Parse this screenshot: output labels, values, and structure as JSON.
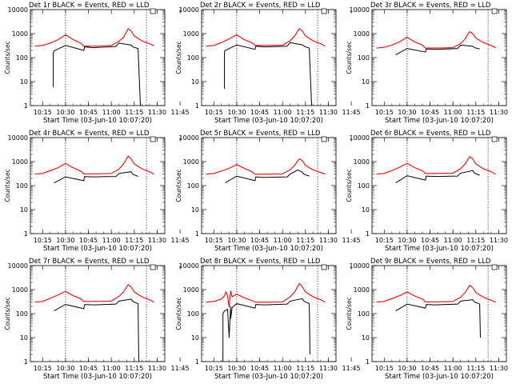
{
  "chart_data": [
    {
      "type": "line",
      "title": "Det 1r BLACK = Events, RED = LLD",
      "xlabel": "Start Time (03-Jun-10 10:07:20)",
      "ylabel": "Counts/sec",
      "scale_y": "log",
      "ylim": [
        1,
        10000
      ],
      "x_ticks": [
        "10:15",
        "10:30",
        "10:45",
        "11:00",
        "11:15",
        "11:30",
        "11:45"
      ],
      "y_ticks": [
        "1",
        "10",
        "100",
        "1000",
        "10000"
      ],
      "vlines": [
        "10:30",
        "11:23"
      ],
      "series": [
        {
          "color": "#000000",
          "x": [
            -8,
            -8,
            -7.5,
            0,
            12,
            12.5,
            18,
            33,
            35,
            43,
            44,
            47.5,
            49
          ],
          "y": [
            6,
            160,
            190,
            320,
            200,
            280,
            260,
            290,
            400,
            330,
            280,
            240,
            0
          ]
        },
        {
          "color": "#ff0000",
          "x": [
            -20,
            -15,
            -10,
            -5,
            0,
            5,
            10,
            12,
            20,
            30,
            35,
            38,
            40,
            41,
            43,
            45,
            50,
            55,
            58
          ],
          "y": [
            300,
            320,
            400,
            550,
            900,
            560,
            400,
            300,
            300,
            320,
            480,
            700,
            1200,
            1600,
            1300,
            800,
            500,
            380,
            310
          ]
        }
      ]
    },
    {
      "type": "line",
      "title": "Det 2r BLACK = Events, RED = LLD",
      "xlabel": "Start Time (03-Jun-10 10:07:20)",
      "ylabel": "Counts/sec",
      "scale_y": "log",
      "ylim": [
        1,
        10000
      ],
      "x_ticks": [
        "10:15",
        "10:30",
        "10:45",
        "11:00",
        "11:15",
        "11:30",
        "11:45"
      ],
      "y_ticks": [
        "1",
        "10",
        "100",
        "1000",
        "10000"
      ],
      "vlines": [
        "10:30",
        "11:23"
      ],
      "series": [
        {
          "color": "#000000",
          "x": [
            -8,
            -8,
            -7.5,
            0,
            12,
            12.5,
            18,
            33,
            35,
            43,
            44,
            47.5,
            49
          ],
          "y": [
            5,
            180,
            200,
            340,
            220,
            300,
            280,
            300,
            420,
            340,
            300,
            250,
            0
          ]
        },
        {
          "color": "#ff0000",
          "x": [
            -20,
            -15,
            -10,
            -5,
            0,
            5,
            10,
            12,
            20,
            30,
            35,
            38,
            40,
            41,
            43,
            45,
            50,
            55,
            58
          ],
          "y": [
            300,
            320,
            420,
            600,
            900,
            560,
            420,
            320,
            320,
            330,
            500,
            800,
            1300,
            1600,
            1300,
            800,
            500,
            380,
            300
          ]
        }
      ]
    },
    {
      "type": "line",
      "title": "Det 3r BLACK = Events, RED = LLD",
      "xlabel": "Start Time (03-Jun-10 10:07:20)",
      "ylabel": "Counts/sec",
      "scale_y": "log",
      "ylim": [
        1,
        10000
      ],
      "x_ticks": [
        "10:15",
        "10:30",
        "10:45",
        "11:00",
        "11:15",
        "11:30",
        "11:45"
      ],
      "y_ticks": [
        "1",
        "10",
        "100",
        "1000",
        "10000"
      ],
      "vlines": [
        "10:30",
        "11:23"
      ],
      "series": [
        {
          "color": "#000000",
          "x": [
            -7.5,
            0,
            12,
            12.5,
            18,
            33,
            35,
            43,
            44,
            47.5
          ],
          "y": [
            130,
            240,
            170,
            230,
            220,
            240,
            330,
            300,
            260,
            230
          ]
        },
        {
          "color": "#ff0000",
          "x": [
            -20,
            -15,
            -10,
            -5,
            0,
            5,
            10,
            12,
            20,
            30,
            35,
            38,
            40,
            41,
            43,
            45,
            50,
            55,
            58
          ],
          "y": [
            250,
            270,
            330,
            450,
            700,
            450,
            330,
            250,
            250,
            260,
            380,
            600,
            1000,
            1200,
            1000,
            650,
            420,
            320,
            260
          ]
        }
      ]
    },
    {
      "type": "line",
      "title": "Det 4r BLACK = Events, RED = LLD",
      "xlabel": "Start Time (03-Jun-10 10:07:20)",
      "ylabel": "Counts/sec",
      "scale_y": "log",
      "ylim": [
        1,
        10000
      ],
      "x_ticks": [
        "10:15",
        "10:30",
        "10:45",
        "11:00",
        "11:15",
        "11:30",
        "11:45"
      ],
      "y_ticks": [
        "1",
        "10",
        "100",
        "1000",
        "10000"
      ],
      "vlines": [
        "10:30",
        "11:23"
      ],
      "series": [
        {
          "color": "#000000",
          "x": [
            -7.5,
            0,
            12,
            12.5,
            18,
            33,
            35,
            43,
            44,
            47.5
          ],
          "y": [
            130,
            230,
            160,
            240,
            230,
            240,
            320,
            380,
            300,
            240
          ]
        },
        {
          "color": "#ff0000",
          "x": [
            -20,
            -15,
            -10,
            -5,
            0,
            5,
            10,
            12,
            20,
            30,
            35,
            38,
            40,
            41,
            43,
            45,
            50,
            55,
            58
          ],
          "y": [
            300,
            320,
            420,
            550,
            850,
            550,
            400,
            310,
            310,
            320,
            480,
            800,
            1300,
            1700,
            1300,
            800,
            500,
            380,
            300
          ]
        }
      ]
    },
    {
      "type": "line",
      "title": "Det 5r BLACK = Events, RED = LLD",
      "xlabel": "Start Time (03-Jun-10 10:07:20)",
      "ylabel": "Counts/sec",
      "scale_y": "log",
      "ylim": [
        1,
        10000
      ],
      "x_ticks": [
        "10:15",
        "10:30",
        "10:45",
        "11:00",
        "11:15",
        "11:30",
        "11:45"
      ],
      "y_ticks": [
        "1",
        "10",
        "100",
        "1000",
        "10000"
      ],
      "vlines": [
        "10:30",
        "11:23"
      ],
      "series": [
        {
          "color": "#000000",
          "x": [
            -7.5,
            0,
            12,
            12.5,
            18,
            33,
            35,
            40,
            43,
            44,
            47.5
          ],
          "y": [
            130,
            250,
            160,
            230,
            220,
            230,
            300,
            450,
            360,
            300,
            250
          ]
        },
        {
          "color": "#ff0000",
          "x": [
            -20,
            -15,
            -10,
            -5,
            0,
            5,
            10,
            12,
            20,
            30,
            35,
            38,
            40,
            41,
            43,
            45,
            50,
            55,
            58
          ],
          "y": [
            300,
            320,
            400,
            520,
            750,
            520,
            380,
            300,
            300,
            310,
            460,
            700,
            1100,
            1300,
            1100,
            700,
            450,
            350,
            300
          ]
        }
      ]
    },
    {
      "type": "line",
      "title": "Det 6r BLACK = Events, RED = LLD",
      "xlabel": "Start Time (03-Jun-10 10:07:20)",
      "ylabel": "Counts/sec",
      "scale_y": "log",
      "ylim": [
        1,
        10000
      ],
      "x_ticks": [
        "10:15",
        "10:30",
        "10:45",
        "11:00",
        "11:15",
        "11:30",
        "11:45"
      ],
      "y_ticks": [
        "1",
        "10",
        "100",
        "1000",
        "10000"
      ],
      "vlines": [
        "10:30",
        "11:23"
      ],
      "series": [
        {
          "color": "#000000",
          "x": [
            -7.5,
            0,
            12,
            12.5,
            18,
            33,
            35,
            43,
            44,
            47.5
          ],
          "y": [
            130,
            260,
            170,
            250,
            240,
            250,
            330,
            420,
            330,
            270
          ]
        },
        {
          "color": "#ff0000",
          "x": [
            -20,
            -15,
            -10,
            -5,
            0,
            5,
            10,
            12,
            20,
            30,
            35,
            38,
            40,
            41,
            43,
            45,
            50,
            55,
            58
          ],
          "y": [
            300,
            320,
            420,
            580,
            850,
            560,
            420,
            320,
            320,
            330,
            500,
            800,
            1300,
            1600,
            1300,
            800,
            500,
            380,
            300
          ]
        }
      ]
    },
    {
      "type": "line",
      "title": "Det 7r BLACK = Events, RED = LLD",
      "xlabel": "Start Time (03-Jun-10 10:07:20)",
      "ylabel": "Counts/sec",
      "scale_y": "log",
      "ylim": [
        1,
        10000
      ],
      "x_ticks": [
        "10:15",
        "10:30",
        "10:45",
        "11:00",
        "11:15",
        "11:30",
        "11:45"
      ],
      "y_ticks": [
        "1",
        "10",
        "100",
        "1000",
        "10000"
      ],
      "vlines": [
        "10:30",
        "11:23"
      ],
      "series": [
        {
          "color": "#000000",
          "x": [
            -7.5,
            0,
            12,
            12.5,
            18,
            33,
            35,
            43,
            44,
            47.5,
            48
          ],
          "y": [
            130,
            240,
            160,
            240,
            230,
            250,
            330,
            400,
            320,
            260,
            1
          ]
        },
        {
          "color": "#ff0000",
          "x": [
            -20,
            -15,
            -10,
            -5,
            0,
            5,
            10,
            12,
            20,
            30,
            35,
            38,
            40,
            41,
            43,
            45,
            50,
            55,
            58
          ],
          "y": [
            300,
            320,
            430,
            600,
            850,
            560,
            420,
            320,
            320,
            330,
            520,
            800,
            1300,
            1600,
            1300,
            800,
            500,
            380,
            300
          ]
        }
      ]
    },
    {
      "type": "line",
      "title": "Det 8r BLACK = Events, RED = LLD",
      "xlabel": "Start Time (03-Jun-10 10:07:20)",
      "ylabel": "Counts/sec",
      "scale_y": "log",
      "ylim": [
        1,
        10000
      ],
      "x_ticks": [
        "10:15",
        "10:30",
        "10:45",
        "11:00",
        "11:15",
        "11:30",
        "11:45"
      ],
      "y_ticks": [
        "1",
        "10",
        "100",
        "1000",
        "10000"
      ],
      "vlines": [
        "10:30",
        "11:23"
      ],
      "series": [
        {
          "color": "#000000",
          "x": [
            -9,
            -9,
            -8,
            -6,
            -5,
            -4,
            -4,
            -3,
            0,
            12,
            12.5,
            18,
            33,
            35,
            43,
            44,
            47.5,
            48
          ],
          "y": [
            1,
            100,
            130,
            150,
            10,
            200,
            60,
            180,
            260,
            170,
            240,
            230,
            250,
            330,
            420,
            330,
            260,
            2
          ]
        },
        {
          "color": "#ff0000",
          "x": [
            -20,
            -15,
            -10,
            -8,
            -7,
            -6,
            -5,
            -4,
            -3,
            0,
            5,
            10,
            12,
            20,
            30,
            35,
            38,
            40,
            41,
            43,
            45,
            50,
            55,
            58
          ],
          "y": [
            300,
            320,
            400,
            550,
            800,
            550,
            180,
            900,
            500,
            650,
            450,
            350,
            300,
            300,
            310,
            500,
            800,
            1400,
            1800,
            1300,
            800,
            500,
            380,
            300
          ]
        }
      ]
    },
    {
      "type": "line",
      "title": "Det 9r BLACK = Events, RED = LLD",
      "xlabel": "Start Time (03-Jun-10 10:07:20)",
      "ylabel": "Counts/sec",
      "scale_y": "log",
      "ylim": [
        1,
        10000
      ],
      "x_ticks": [
        "10:15",
        "10:30",
        "10:45",
        "11:00",
        "11:15",
        "11:30",
        "11:45"
      ],
      "y_ticks": [
        "1",
        "10",
        "100",
        "1000",
        "10000"
      ],
      "vlines": [
        "10:30",
        "11:23"
      ],
      "series": [
        {
          "color": "#000000",
          "x": [
            -7.5,
            0,
            12,
            12.5,
            18,
            33,
            35,
            43,
            44,
            47.5,
            48
          ],
          "y": [
            130,
            250,
            170,
            240,
            230,
            250,
            330,
            380,
            310,
            250,
            10
          ]
        },
        {
          "color": "#ff0000",
          "x": [
            -20,
            -15,
            -10,
            -5,
            0,
            5,
            10,
            12,
            20,
            30,
            35,
            38,
            40,
            41,
            43,
            45,
            50,
            55,
            58
          ],
          "y": [
            300,
            320,
            420,
            560,
            800,
            540,
            400,
            310,
            310,
            320,
            480,
            750,
            1200,
            1500,
            1200,
            750,
            480,
            360,
            300
          ]
        }
      ]
    }
  ]
}
